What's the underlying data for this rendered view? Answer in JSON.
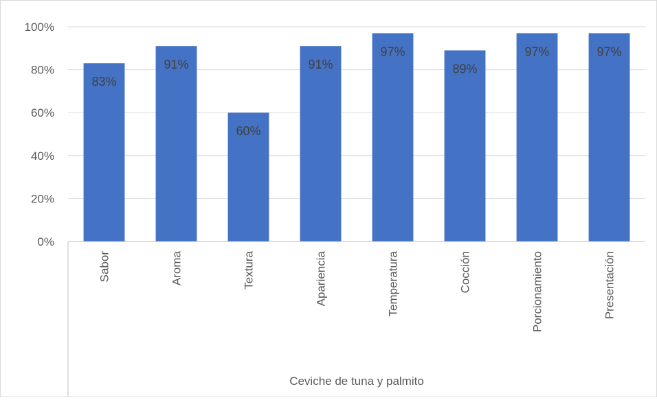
{
  "chart_data": {
    "type": "bar",
    "categories": [
      "Sabor",
      "Aroma",
      "Textura",
      "Apariencia",
      "Temperatura",
      "Cocción",
      "Porcionamiento",
      "Presentación"
    ],
    "values": [
      83,
      91,
      60,
      91,
      97,
      89,
      97,
      97
    ],
    "data_labels": [
      "83%",
      "91%",
      "60%",
      "91%",
      "97%",
      "89%",
      "97%",
      "97%"
    ],
    "ylim": [
      0,
      100
    ],
    "yticks": [
      0,
      20,
      40,
      60,
      80,
      100
    ],
    "ytick_labels": [
      "0%",
      "20%",
      "40%",
      "60%",
      "80%",
      "100%"
    ],
    "xlabel": "Ceviche de tuna y palmito",
    "grid": true,
    "bar_color": "#4472C4",
    "gridline_color": "#d9d9d9"
  }
}
